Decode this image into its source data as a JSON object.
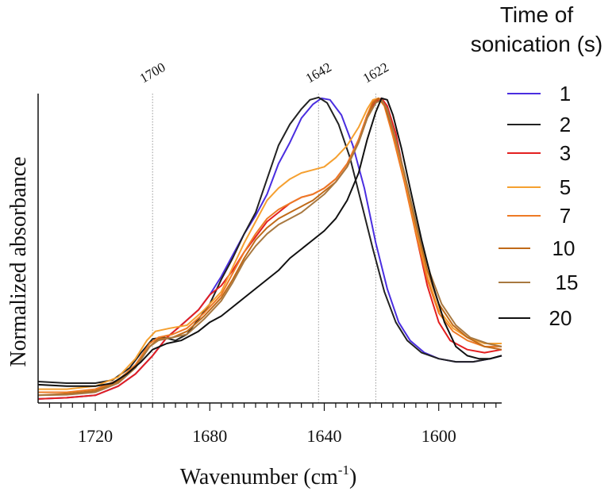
{
  "chart_data": {
    "type": "line",
    "xlabel": "Wavenumber (cm",
    "xlabel_sup": "-1",
    "xlabel_tail": ")",
    "ylabel": "Normalized absorbance",
    "xlim": [
      1740,
      1578
    ],
    "x_reversed": true,
    "ylim": [
      0,
      1
    ],
    "x_ticks": [
      1720,
      1680,
      1640,
      1600
    ],
    "x_tick_labels": [
      "1720",
      "1680",
      "1640",
      "1600"
    ],
    "x_minor_tick_step": 4,
    "grid": false,
    "reference_lines": [
      {
        "x": 1700,
        "label": "1700"
      },
      {
        "x": 1642,
        "label": "1642"
      },
      {
        "x": 1622,
        "label": "1622"
      }
    ],
    "legend": {
      "title_line1": "Time of",
      "title_line2": "sonication (s)",
      "placement": "right"
    },
    "series": [
      {
        "name": "1",
        "color": "#4a2ee0",
        "points": [
          [
            1740,
            0.008
          ],
          [
            1730,
            0.012
          ],
          [
            1720,
            0.02
          ],
          [
            1712,
            0.05
          ],
          [
            1706,
            0.09
          ],
          [
            1700,
            0.15
          ],
          [
            1695,
            0.21
          ],
          [
            1690,
            0.25
          ],
          [
            1684,
            0.3
          ],
          [
            1680,
            0.35
          ],
          [
            1676,
            0.41
          ],
          [
            1672,
            0.48
          ],
          [
            1668,
            0.55
          ],
          [
            1664,
            0.61
          ],
          [
            1660,
            0.68
          ],
          [
            1656,
            0.78
          ],
          [
            1652,
            0.85
          ],
          [
            1648,
            0.93
          ],
          [
            1644,
            0.975
          ],
          [
            1641,
            0.995
          ],
          [
            1638,
            0.99
          ],
          [
            1634,
            0.94
          ],
          [
            1630,
            0.84
          ],
          [
            1626,
            0.7
          ],
          [
            1622,
            0.52
          ],
          [
            1618,
            0.37
          ],
          [
            1614,
            0.26
          ],
          [
            1610,
            0.2
          ],
          [
            1605,
            0.16
          ],
          [
            1600,
            0.14
          ],
          [
            1594,
            0.13
          ],
          [
            1588,
            0.13
          ],
          [
            1582,
            0.14
          ],
          [
            1578,
            0.15
          ]
        ]
      },
      {
        "name": "2",
        "color": "#222222",
        "points": [
          [
            1740,
            0.065
          ],
          [
            1730,
            0.06
          ],
          [
            1720,
            0.06
          ],
          [
            1714,
            0.07
          ],
          [
            1708,
            0.11
          ],
          [
            1704,
            0.16
          ],
          [
            1700,
            0.205
          ],
          [
            1696,
            0.21
          ],
          [
            1692,
            0.2
          ],
          [
            1688,
            0.22
          ],
          [
            1684,
            0.27
          ],
          [
            1680,
            0.32
          ],
          [
            1676,
            0.4
          ],
          [
            1672,
            0.47
          ],
          [
            1668,
            0.55
          ],
          [
            1664,
            0.62
          ],
          [
            1660,
            0.73
          ],
          [
            1656,
            0.84
          ],
          [
            1652,
            0.91
          ],
          [
            1648,
            0.96
          ],
          [
            1645,
            0.99
          ],
          [
            1642,
            0.998
          ],
          [
            1639,
            0.98
          ],
          [
            1635,
            0.91
          ],
          [
            1631,
            0.8
          ],
          [
            1627,
            0.65
          ],
          [
            1623,
            0.5
          ],
          [
            1619,
            0.36
          ],
          [
            1615,
            0.26
          ],
          [
            1611,
            0.2
          ],
          [
            1606,
            0.16
          ],
          [
            1600,
            0.14
          ],
          [
            1594,
            0.13
          ],
          [
            1588,
            0.13
          ],
          [
            1582,
            0.14
          ],
          [
            1578,
            0.15
          ]
        ]
      },
      {
        "name": "3",
        "color": "#e32020",
        "points": [
          [
            1740,
            0.008
          ],
          [
            1730,
            0.012
          ],
          [
            1720,
            0.02
          ],
          [
            1712,
            0.05
          ],
          [
            1706,
            0.09
          ],
          [
            1700,
            0.15
          ],
          [
            1695,
            0.21
          ],
          [
            1690,
            0.25
          ],
          [
            1684,
            0.3
          ],
          [
            1680,
            0.35
          ],
          [
            1676,
            0.38
          ],
          [
            1672,
            0.43
          ],
          [
            1668,
            0.49
          ],
          [
            1664,
            0.54
          ],
          [
            1660,
            0.59
          ],
          [
            1656,
            0.62
          ],
          [
            1652,
            0.65
          ],
          [
            1648,
            0.67
          ],
          [
            1644,
            0.68
          ],
          [
            1640,
            0.7
          ],
          [
            1636,
            0.73
          ],
          [
            1632,
            0.78
          ],
          [
            1628,
            0.86
          ],
          [
            1625,
            0.94
          ],
          [
            1622,
            0.985
          ],
          [
            1620,
            0.995
          ],
          [
            1618,
            0.97
          ],
          [
            1615,
            0.88
          ],
          [
            1612,
            0.74
          ],
          [
            1608,
            0.55
          ],
          [
            1604,
            0.38
          ],
          [
            1600,
            0.26
          ],
          [
            1596,
            0.2
          ],
          [
            1590,
            0.17
          ],
          [
            1584,
            0.16
          ],
          [
            1578,
            0.17
          ]
        ]
      },
      {
        "name": "5",
        "color": "#f5a030",
        "points": [
          [
            1740,
            0.04
          ],
          [
            1730,
            0.04
          ],
          [
            1720,
            0.05
          ],
          [
            1712,
            0.08
          ],
          [
            1706,
            0.14
          ],
          [
            1702,
            0.2
          ],
          [
            1699,
            0.23
          ],
          [
            1694,
            0.24
          ],
          [
            1688,
            0.25
          ],
          [
            1682,
            0.3
          ],
          [
            1676,
            0.36
          ],
          [
            1672,
            0.44
          ],
          [
            1668,
            0.52
          ],
          [
            1664,
            0.59
          ],
          [
            1660,
            0.66
          ],
          [
            1656,
            0.7
          ],
          [
            1652,
            0.73
          ],
          [
            1648,
            0.75
          ],
          [
            1644,
            0.76
          ],
          [
            1640,
            0.77
          ],
          [
            1636,
            0.8
          ],
          [
            1632,
            0.84
          ],
          [
            1628,
            0.9
          ],
          [
            1625,
            0.96
          ],
          [
            1623,
            0.99
          ],
          [
            1621,
            0.995
          ],
          [
            1619,
            0.97
          ],
          [
            1616,
            0.88
          ],
          [
            1612,
            0.73
          ],
          [
            1608,
            0.56
          ],
          [
            1604,
            0.41
          ],
          [
            1600,
            0.3
          ],
          [
            1595,
            0.24
          ],
          [
            1590,
            0.21
          ],
          [
            1584,
            0.19
          ],
          [
            1578,
            0.19
          ]
        ]
      },
      {
        "name": "7",
        "color": "#ee7a25",
        "points": [
          [
            1740,
            0.03
          ],
          [
            1730,
            0.03
          ],
          [
            1720,
            0.04
          ],
          [
            1712,
            0.07
          ],
          [
            1706,
            0.12
          ],
          [
            1701,
            0.19
          ],
          [
            1698,
            0.21
          ],
          [
            1693,
            0.22
          ],
          [
            1688,
            0.24
          ],
          [
            1682,
            0.29
          ],
          [
            1676,
            0.35
          ],
          [
            1672,
            0.42
          ],
          [
            1668,
            0.49
          ],
          [
            1664,
            0.55
          ],
          [
            1660,
            0.6
          ],
          [
            1656,
            0.63
          ],
          [
            1652,
            0.65
          ],
          [
            1648,
            0.67
          ],
          [
            1644,
            0.68
          ],
          [
            1640,
            0.7
          ],
          [
            1636,
            0.73
          ],
          [
            1632,
            0.78
          ],
          [
            1628,
            0.86
          ],
          [
            1625,
            0.94
          ],
          [
            1623,
            0.985
          ],
          [
            1621,
            0.995
          ],
          [
            1619,
            0.97
          ],
          [
            1616,
            0.87
          ],
          [
            1612,
            0.72
          ],
          [
            1608,
            0.55
          ],
          [
            1604,
            0.4
          ],
          [
            1600,
            0.29
          ],
          [
            1595,
            0.23
          ],
          [
            1590,
            0.2
          ],
          [
            1584,
            0.18
          ],
          [
            1578,
            0.18
          ]
        ]
      },
      {
        "name": "10",
        "color": "#c06a18",
        "points": [
          [
            1740,
            0.02
          ],
          [
            1730,
            0.025
          ],
          [
            1720,
            0.035
          ],
          [
            1712,
            0.065
          ],
          [
            1706,
            0.115
          ],
          [
            1701,
            0.18
          ],
          [
            1698,
            0.205
          ],
          [
            1693,
            0.21
          ],
          [
            1688,
            0.23
          ],
          [
            1682,
            0.28
          ],
          [
            1676,
            0.34
          ],
          [
            1672,
            0.4
          ],
          [
            1668,
            0.47
          ],
          [
            1664,
            0.53
          ],
          [
            1660,
            0.57
          ],
          [
            1656,
            0.6
          ],
          [
            1652,
            0.62
          ],
          [
            1648,
            0.64
          ],
          [
            1644,
            0.66
          ],
          [
            1640,
            0.69
          ],
          [
            1636,
            0.72
          ],
          [
            1632,
            0.77
          ],
          [
            1628,
            0.85
          ],
          [
            1625,
            0.93
          ],
          [
            1623,
            0.98
          ],
          [
            1621,
            0.995
          ],
          [
            1619,
            0.975
          ],
          [
            1616,
            0.89
          ],
          [
            1612,
            0.75
          ],
          [
            1608,
            0.58
          ],
          [
            1604,
            0.43
          ],
          [
            1600,
            0.32
          ],
          [
            1595,
            0.25
          ],
          [
            1590,
            0.21
          ],
          [
            1584,
            0.18
          ],
          [
            1578,
            0.17
          ]
        ]
      },
      {
        "name": "15",
        "color": "#a87840",
        "points": [
          [
            1740,
            0.02
          ],
          [
            1730,
            0.022
          ],
          [
            1720,
            0.03
          ],
          [
            1712,
            0.06
          ],
          [
            1706,
            0.11
          ],
          [
            1701,
            0.18
          ],
          [
            1698,
            0.2
          ],
          [
            1693,
            0.21
          ],
          [
            1688,
            0.22
          ],
          [
            1682,
            0.27
          ],
          [
            1676,
            0.33
          ],
          [
            1672,
            0.39
          ],
          [
            1668,
            0.46
          ],
          [
            1664,
            0.51
          ],
          [
            1660,
            0.55
          ],
          [
            1656,
            0.58
          ],
          [
            1652,
            0.6
          ],
          [
            1648,
            0.62
          ],
          [
            1644,
            0.65
          ],
          [
            1640,
            0.68
          ],
          [
            1636,
            0.72
          ],
          [
            1632,
            0.77
          ],
          [
            1628,
            0.85
          ],
          [
            1625,
            0.93
          ],
          [
            1622,
            0.98
          ],
          [
            1620,
            0.99
          ],
          [
            1618,
            0.96
          ],
          [
            1615,
            0.86
          ],
          [
            1611,
            0.71
          ],
          [
            1607,
            0.55
          ],
          [
            1603,
            0.42
          ],
          [
            1599,
            0.32
          ],
          [
            1594,
            0.25
          ],
          [
            1589,
            0.21
          ],
          [
            1583,
            0.19
          ],
          [
            1578,
            0.18
          ]
        ]
      },
      {
        "name": "20",
        "color": "#111111",
        "points": [
          [
            1740,
            0.055
          ],
          [
            1730,
            0.05
          ],
          [
            1720,
            0.05
          ],
          [
            1714,
            0.06
          ],
          [
            1709,
            0.09
          ],
          [
            1704,
            0.13
          ],
          [
            1700,
            0.17
          ],
          [
            1695,
            0.19
          ],
          [
            1690,
            0.2
          ],
          [
            1684,
            0.23
          ],
          [
            1680,
            0.26
          ],
          [
            1676,
            0.28
          ],
          [
            1672,
            0.31
          ],
          [
            1668,
            0.34
          ],
          [
            1664,
            0.37
          ],
          [
            1660,
            0.4
          ],
          [
            1656,
            0.43
          ],
          [
            1652,
            0.47
          ],
          [
            1648,
            0.5
          ],
          [
            1644,
            0.53
          ],
          [
            1640,
            0.56
          ],
          [
            1636,
            0.6
          ],
          [
            1632,
            0.66
          ],
          [
            1628,
            0.75
          ],
          [
            1625,
            0.86
          ],
          [
            1622,
            0.95
          ],
          [
            1620,
            0.995
          ],
          [
            1618,
            0.99
          ],
          [
            1616,
            0.94
          ],
          [
            1613,
            0.83
          ],
          [
            1610,
            0.7
          ],
          [
            1606,
            0.53
          ],
          [
            1602,
            0.38
          ],
          [
            1598,
            0.26
          ],
          [
            1594,
            0.18
          ],
          [
            1590,
            0.15
          ],
          [
            1586,
            0.14
          ],
          [
            1582,
            0.14
          ],
          [
            1578,
            0.15
          ]
        ]
      }
    ]
  }
}
